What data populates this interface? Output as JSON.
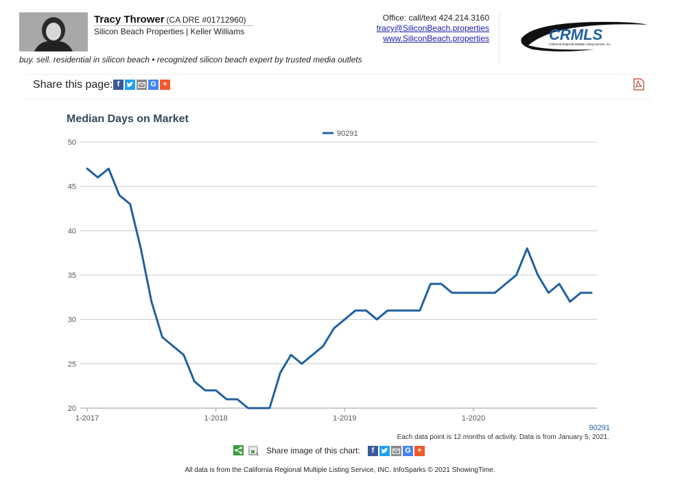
{
  "header": {
    "agent_name": "Tracy Thrower",
    "license": "(CA DRE #01712960)",
    "company": "Silicon Beach Properties | Keller Williams",
    "office": "Office: call/text 424.214.3160",
    "email": "tracy@SiliconBeach.properties",
    "website": "www.SiliconBeach.properties",
    "tagline": "buy. sell. residential in silicon beach • recognized silicon beach expert by trusted media outlets",
    "logo_text": "CRMLS",
    "logo_subtext": "California Regional Multiple Listing Service, Inc."
  },
  "share": {
    "label": "Share this page:",
    "icons": [
      "facebook-icon",
      "twitter-icon",
      "email-icon",
      "google-icon",
      "plus-icon"
    ]
  },
  "chart_data": {
    "type": "line",
    "title": "Median Days on Market",
    "xlabel": "",
    "ylabel": "",
    "ylim": [
      20,
      50
    ],
    "yticks": [
      20,
      25,
      30,
      35,
      40,
      45,
      50
    ],
    "xticks": [
      "1-2017",
      "1-2018",
      "1-2019",
      "1-2020"
    ],
    "x": [
      "1-2017",
      "2-2017",
      "3-2017",
      "4-2017",
      "5-2017",
      "6-2017",
      "7-2017",
      "8-2017",
      "9-2017",
      "10-2017",
      "11-2017",
      "12-2017",
      "1-2018",
      "2-2018",
      "3-2018",
      "4-2018",
      "5-2018",
      "6-2018",
      "7-2018",
      "8-2018",
      "9-2018",
      "10-2018",
      "11-2018",
      "12-2018",
      "1-2019",
      "2-2019",
      "3-2019",
      "4-2019",
      "5-2019",
      "6-2019",
      "7-2019",
      "8-2019",
      "9-2019",
      "10-2019",
      "11-2019",
      "12-2019",
      "1-2020",
      "2-2020",
      "3-2020",
      "4-2020",
      "5-2020",
      "6-2020",
      "7-2020",
      "8-2020",
      "9-2020",
      "10-2020",
      "11-2020",
      "12-2020"
    ],
    "series": [
      {
        "name": "90291",
        "color": "#1f5fa0",
        "values": [
          47,
          46,
          47,
          44,
          43,
          38,
          32,
          28,
          27,
          26,
          23,
          22,
          22,
          21,
          21,
          20,
          20,
          20,
          24,
          26,
          25,
          26,
          27,
          29,
          30,
          31,
          31,
          30,
          31,
          31,
          31,
          31,
          34,
          34,
          33,
          33,
          33,
          33,
          33,
          34,
          35,
          38,
          35,
          33,
          34,
          32,
          33,
          33
        ]
      }
    ],
    "legend": "top-center",
    "grid": true,
    "corner_label": "90291"
  },
  "chart_note": "Each data point is 12 months of activity. Data is from January 5, 2021.",
  "share_image_label": "Share image of this chart:",
  "footer": "All data is from the California Regional Multiple Listing Service, INC. InfoSparks © 2021 ShowingTime."
}
